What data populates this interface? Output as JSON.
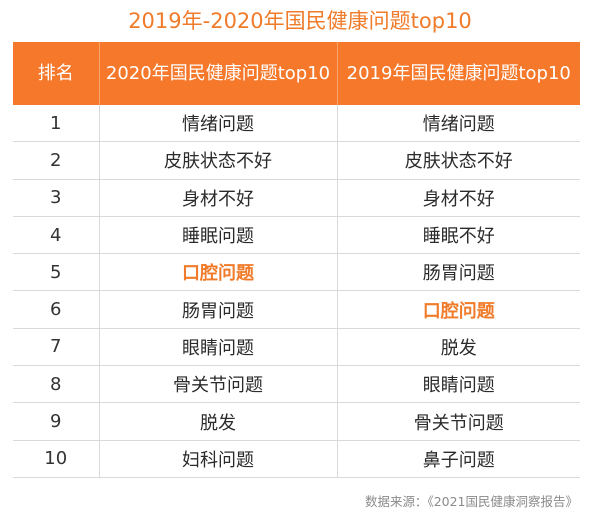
{
  "chart_data": {
    "type": "table",
    "title": "2019年-2020年国民健康问题top10",
    "columns": [
      "排名",
      "2020年国民健康问题top10",
      "2019年国民健康问题top10"
    ],
    "rows": [
      [
        "1",
        "情绪问题",
        "情绪问题"
      ],
      [
        "2",
        "皮肤状态不好",
        "皮肤状态不好"
      ],
      [
        "3",
        "身材不好",
        "身材不好"
      ],
      [
        "4",
        "睡眠问题",
        "睡眠不好"
      ],
      [
        "5",
        "口腔问题",
        "肠胃问题"
      ],
      [
        "6",
        "肠胃问题",
        "口腔问题"
      ],
      [
        "7",
        "眼睛问题",
        "脱发"
      ],
      [
        "8",
        "骨关节问题",
        "眼睛问题"
      ],
      [
        "9",
        "脱发",
        "骨关节问题"
      ],
      [
        "10",
        "妇科问题",
        "鼻子问题"
      ]
    ],
    "highlight": {
      "text": "口腔问题",
      "color": "#f07b2a"
    },
    "source": "数据来源：《2021国民健康洞察报告》"
  },
  "colors": {
    "header_bg": "#f5782b",
    "title": "#f07b2a",
    "grid": "#d9d9d9"
  }
}
